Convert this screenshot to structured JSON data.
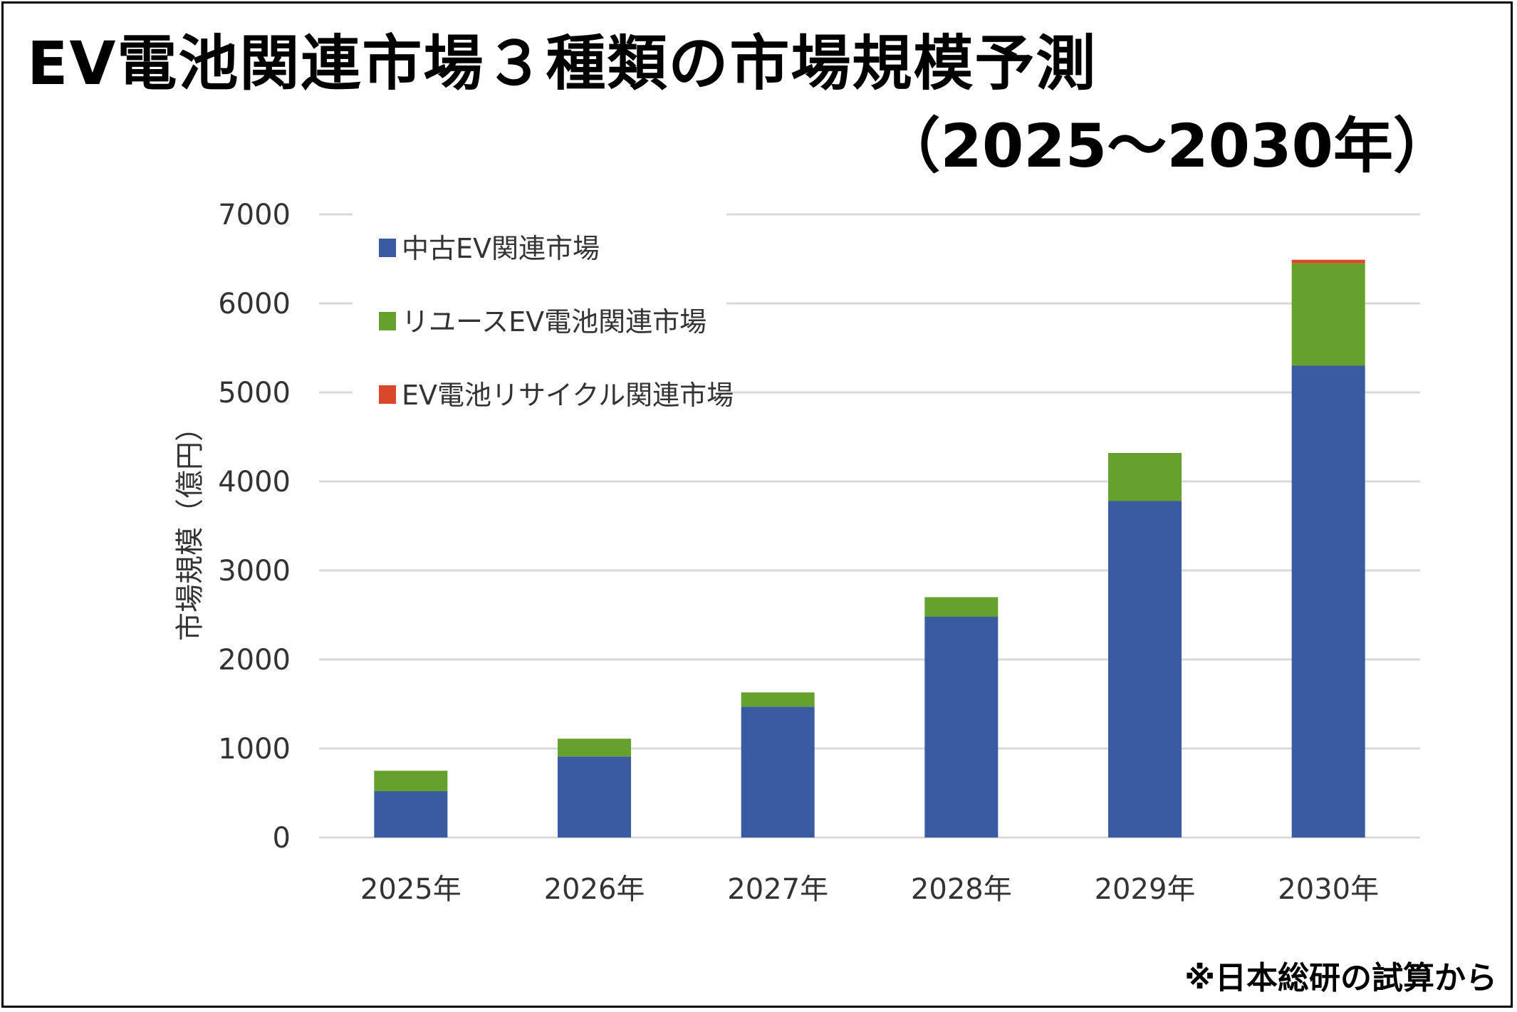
{
  "chart_data": {
    "type": "bar",
    "stacked": true,
    "title": "EV電池関連市場３種類の市場規模予測",
    "subtitle": "（2025～2030年）",
    "xlabel": "",
    "ylabel": "市場規模（億円）",
    "ylim": [
      0,
      7000
    ],
    "yticks": [
      "0",
      "1000",
      "2000",
      "3000",
      "4000",
      "5000",
      "6000",
      "7000"
    ],
    "grid": true,
    "legend_position": "top-left",
    "categories": [
      "2025年",
      "2026年",
      "2027年",
      "2028年",
      "2029年",
      "2030年"
    ],
    "series": [
      {
        "name": "中古EV関連市場",
        "color": "#3a5ba0",
        "values": [
          520,
          910,
          1470,
          2480,
          3780,
          5300
        ]
      },
      {
        "name": "リユースEV電池関連市場",
        "color": "#65a12c",
        "values": [
          230,
          200,
          160,
          220,
          540,
          1150
        ]
      },
      {
        "name": "EV電池リサイクル関連市場",
        "color": "#d9482b",
        "values": [
          0,
          0,
          0,
          0,
          0,
          40
        ]
      }
    ],
    "source": "※日本総研の試算から"
  }
}
